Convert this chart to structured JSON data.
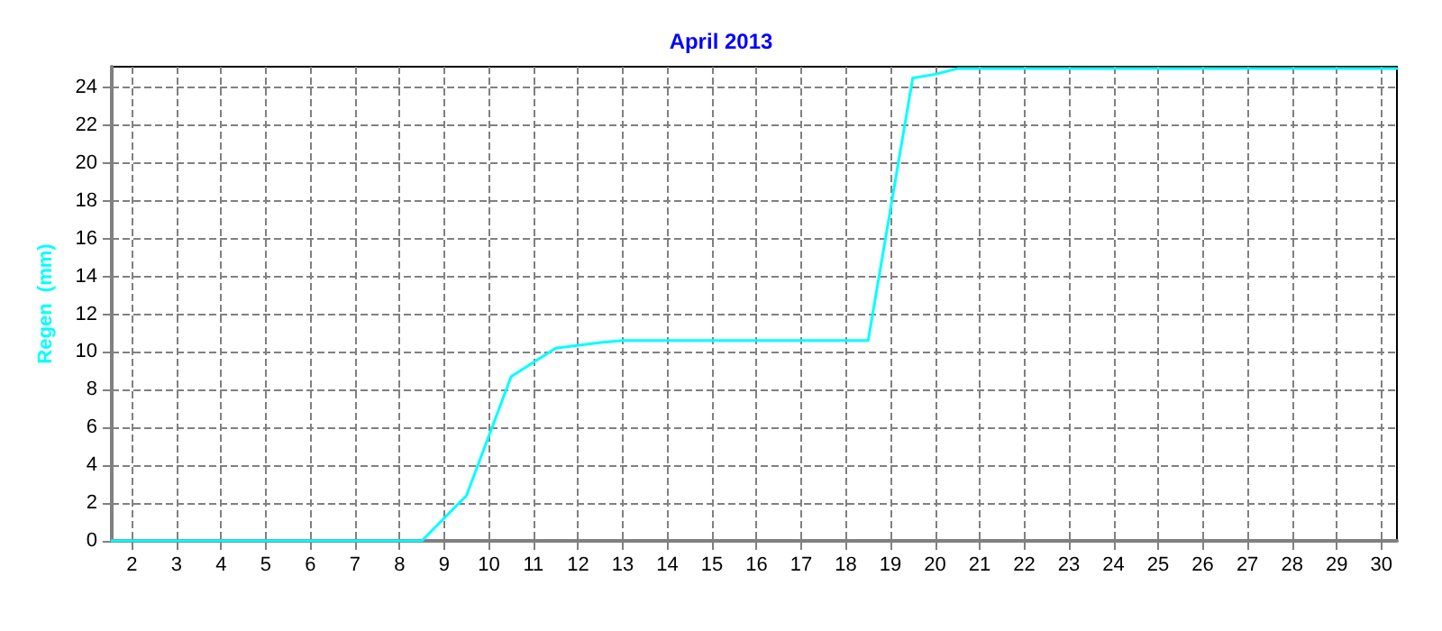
{
  "chart_data": {
    "type": "line",
    "title": "April 2013",
    "ylabel": "Regen  (mm)",
    "x": [
      1.55,
      8.5,
      9.5,
      10.5,
      11.5,
      12.5,
      13,
      18.5,
      19.5,
      20,
      20.5,
      30.35
    ],
    "series": [
      {
        "color": "#00ffff",
        "values": [
          0,
          0,
          2.4,
          8.7,
          10.2,
          10.5,
          10.6,
          10.6,
          24.5,
          24.7,
          25.0,
          25.0
        ]
      }
    ],
    "xlim": [
      1.55,
      30.35
    ],
    "xticks": [
      2,
      3,
      4,
      5,
      6,
      7,
      8,
      9,
      10,
      11,
      12,
      13,
      14,
      15,
      16,
      17,
      18,
      19,
      20,
      21,
      22,
      23,
      24,
      25,
      26,
      27,
      28,
      29,
      30
    ],
    "ylim": [
      0,
      25.1
    ],
    "yticks": [
      0,
      2,
      4,
      6,
      8,
      10,
      12,
      14,
      16,
      18,
      20,
      22,
      24
    ],
    "grid": true,
    "marker": "none",
    "line_style": "solid"
  }
}
